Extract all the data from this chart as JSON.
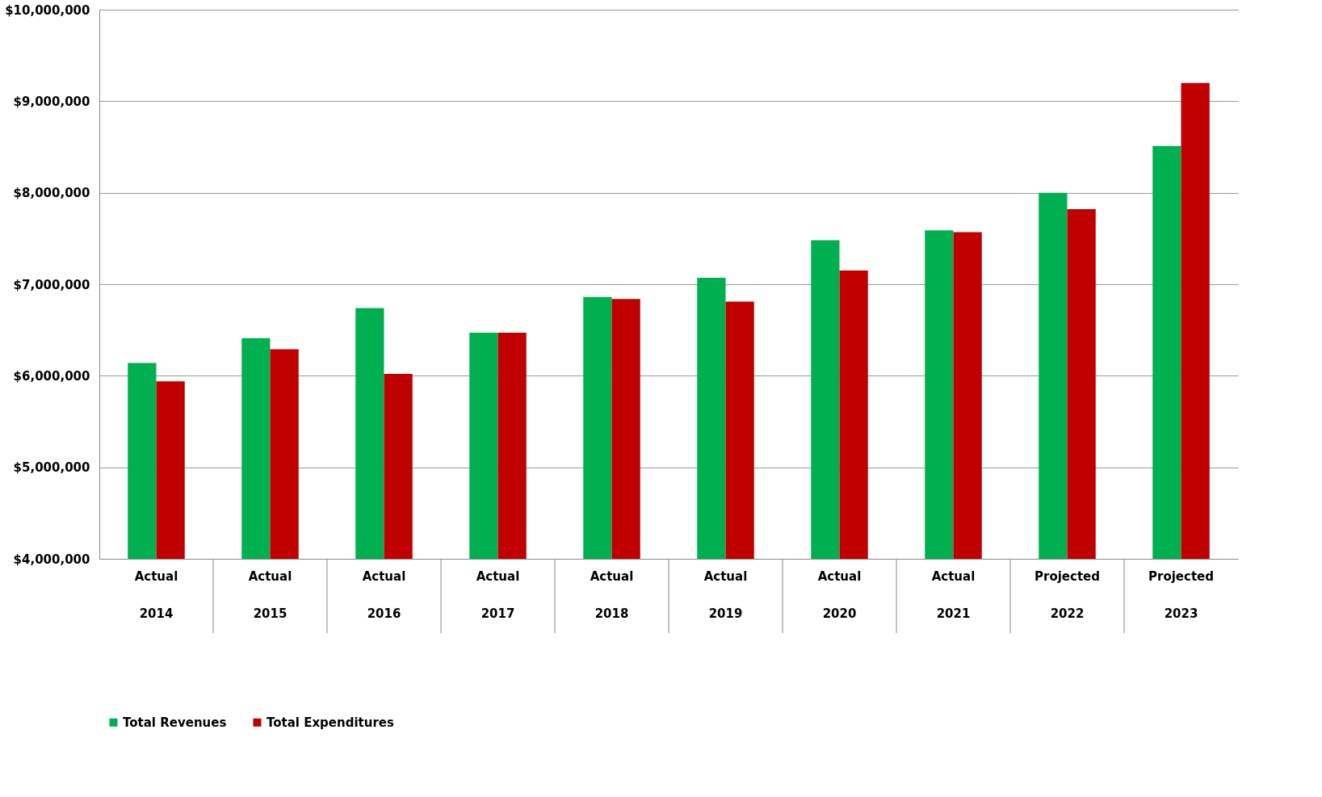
{
  "chart_data": {
    "type": "bar",
    "categories": [
      "Actual 2014",
      "Actual 2015",
      "Actual 2016",
      "Actual 2017",
      "Actual 2018",
      "Actual 2019",
      "Actual 2020",
      "Actual 2021",
      "Projected 2022",
      "Projected 2023"
    ],
    "series": [
      {
        "name": "Total Revenues",
        "color": "#00b050",
        "values": [
          6140000,
          6410000,
          6740000,
          6470000,
          6860000,
          7070000,
          7480000,
          7590000,
          8000000,
          8510000
        ]
      },
      {
        "name": "Total Expenditures",
        "color": "#c00000",
        "values": [
          5940000,
          6290000,
          6020000,
          6470000,
          6840000,
          6810000,
          7150000,
          7570000,
          7820000,
          9200000
        ]
      }
    ],
    "ylim": [
      4000000,
      10000000
    ],
    "yticks": [
      {
        "value": 4000000,
        "label": "$4,000,000"
      },
      {
        "value": 5000000,
        "label": "$5,000,000"
      },
      {
        "value": 6000000,
        "label": "$6,000,000"
      },
      {
        "value": 7000000,
        "label": "$7,000,000"
      },
      {
        "value": 8000000,
        "label": "$8,000,000"
      },
      {
        "value": 9000000,
        "label": "$9,000,000"
      },
      {
        "value": 10000000,
        "label": "$10,000,000"
      }
    ],
    "grid": "y",
    "legend": "bottom"
  }
}
